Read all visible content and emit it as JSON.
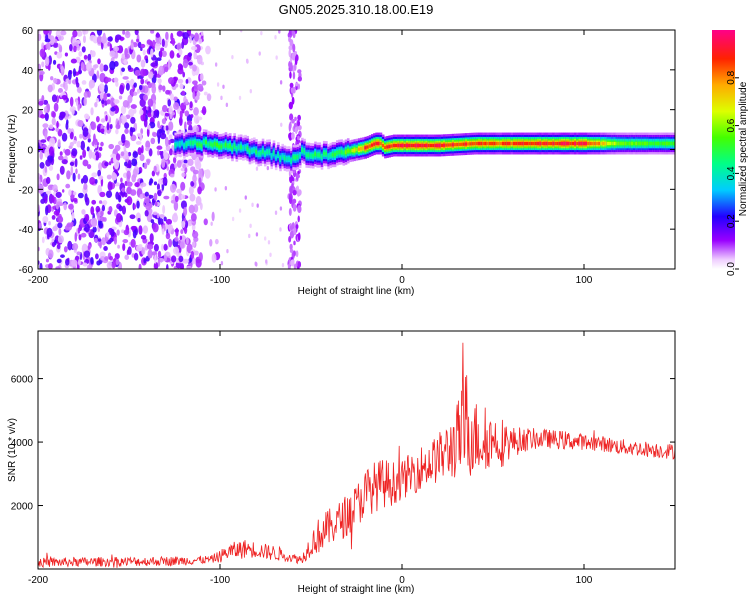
{
  "title": "GN05.2025.310.18.00.E19",
  "chart_data": [
    {
      "type": "heatmap",
      "title": "GN05.2025.310.18.00.E19",
      "xlabel": "Height of straight line (km)",
      "ylabel": "Frequency (Hz)",
      "xlim": [
        -200,
        150
      ],
      "ylim": [
        -60,
        60
      ],
      "xticks": [
        -200,
        -100,
        0,
        100
      ],
      "xtick_labels": [
        "-200",
        "-100",
        "0",
        "100"
      ],
      "yticks": [
        -60,
        -40,
        -20,
        0,
        20,
        40,
        60
      ],
      "ytick_labels": [
        "-60",
        "-40",
        "-20",
        "0",
        "20",
        "40",
        "60"
      ],
      "colorbar": {
        "label": "Normalized spectral amplitude",
        "range": [
          0,
          1
        ],
        "ticks": [
          0.0,
          0.2,
          0.4,
          0.6,
          0.8
        ],
        "tick_labels": [
          "0.0",
          "0.2",
          "0.4",
          "0.6",
          "0.8"
        ]
      },
      "noise_region_km": [
        -200,
        -110
      ],
      "secondary_noise_band_km": [
        -62,
        -56
      ],
      "ridge": {
        "x": [
          -125,
          -110,
          -100,
          -90,
          -80,
          -70,
          -60,
          -55,
          -50,
          -40,
          -30,
          -20,
          -15,
          -12,
          -10,
          -5,
          0,
          20,
          40,
          60,
          80,
          100,
          120,
          150
        ],
        "frequency": [
          2,
          3,
          2,
          1,
          -1,
          -3,
          -5,
          -1,
          -3,
          -3,
          -1,
          1,
          3,
          3,
          1,
          2,
          2,
          2,
          3,
          3,
          3,
          3,
          3,
          3
        ],
        "peak_amplitude": [
          0.4,
          0.5,
          0.5,
          0.45,
          0.45,
          0.4,
          0.45,
          0.45,
          0.5,
          0.45,
          0.55,
          0.9,
          0.95,
          0.9,
          0.9,
          0.95,
          0.95,
          0.95,
          0.9,
          0.9,
          0.95,
          0.95,
          0.6,
          0.55
        ]
      }
    },
    {
      "type": "line",
      "xlabel": "Height of straight line (km)",
      "ylabel": "SNR (10 * v/v)",
      "xlim": [
        -200,
        150
      ],
      "ylim": [
        0,
        7500
      ],
      "xticks": [
        -200,
        -100,
        0,
        100
      ],
      "xtick_labels": [
        "-200",
        "-100",
        "0",
        "100"
      ],
      "yticks": [
        2000,
        4000,
        6000
      ],
      "ytick_labels": [
        "2000",
        "4000",
        "6000"
      ],
      "color": "#ee2222",
      "series": [
        {
          "name": "SNR",
          "x": [
            -200,
            -180,
            -160,
            -140,
            -120,
            -105,
            -100,
            -95,
            -90,
            -85,
            -80,
            -75,
            -70,
            -65,
            -60,
            -55,
            -50,
            -45,
            -40,
            -35,
            -30,
            -25,
            -20,
            -15,
            -10,
            -5,
            0,
            5,
            10,
            15,
            20,
            25,
            30,
            33,
            35,
            38,
            40,
            45,
            50,
            55,
            60,
            70,
            80,
            90,
            100,
            110,
            120,
            130,
            140,
            150
          ],
          "y": [
            200,
            220,
            230,
            240,
            260,
            300,
            400,
            550,
            600,
            650,
            600,
            550,
            500,
            450,
            350,
            300,
            800,
            1100,
            1300,
            1500,
            1700,
            2000,
            2400,
            2600,
            2700,
            2700,
            2800,
            3000,
            3200,
            3300,
            3500,
            3700,
            4000,
            4300,
            4500,
            4400,
            4200,
            4000,
            4100,
            4000,
            4000,
            4100,
            4100,
            4050,
            4000,
            3950,
            3850,
            3800,
            3750,
            3700
          ],
          "noise": [
            150,
            150,
            150,
            150,
            150,
            120,
            200,
            250,
            300,
            300,
            250,
            250,
            250,
            200,
            150,
            150,
            400,
            600,
            600,
            600,
            700,
            700,
            800,
            800,
            800,
            700,
            600,
            700,
            700,
            700,
            800,
            900,
            1200,
            1500,
            2000,
            1500,
            1200,
            1000,
            800,
            800,
            500,
            350,
            300,
            300,
            250,
            250,
            250,
            250,
            250,
            250
          ]
        }
      ]
    }
  ]
}
